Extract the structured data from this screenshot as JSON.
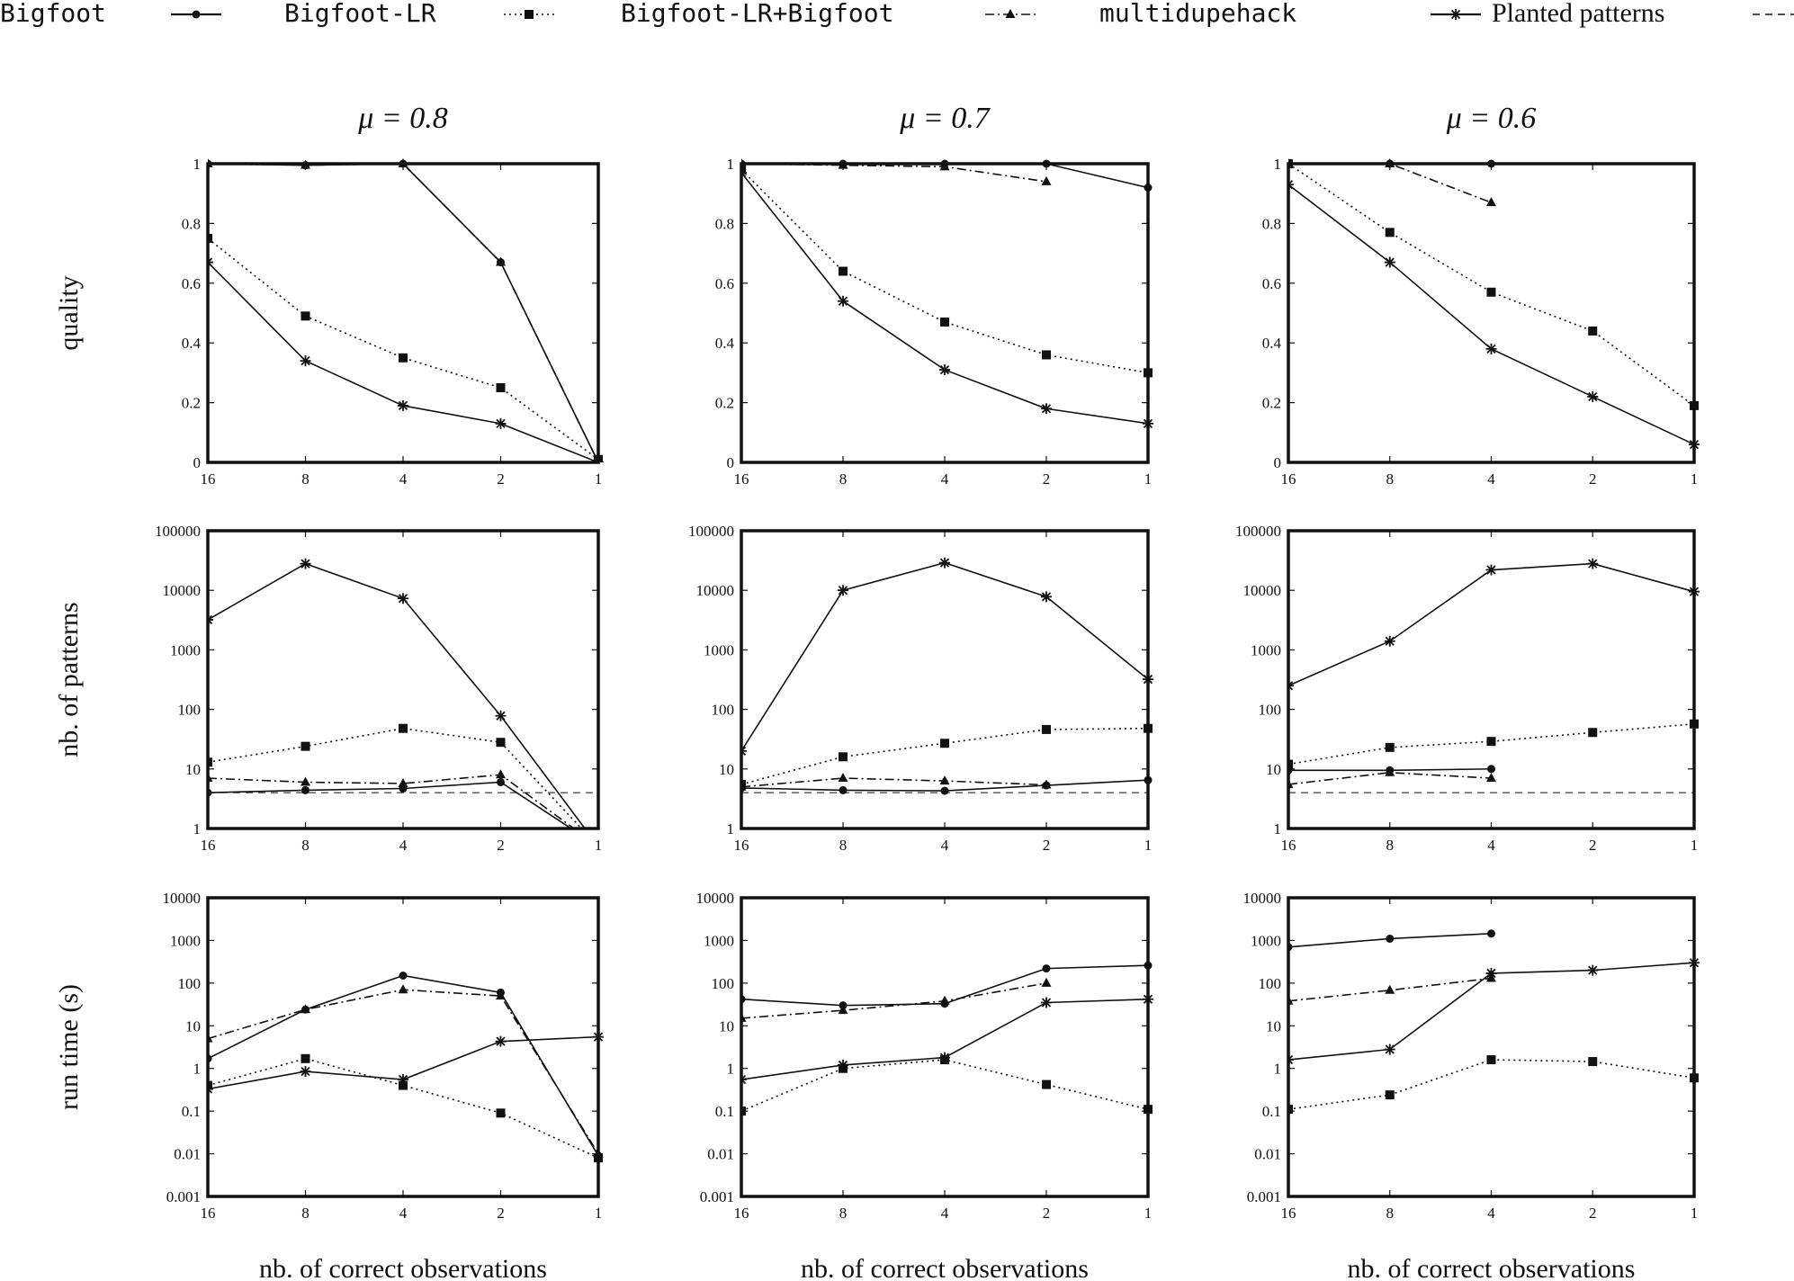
{
  "legend": [
    {
      "label": "Bigfoot",
      "style": "solid",
      "marker": "circle"
    },
    {
      "label": "Bigfoot-LR",
      "style": "dotted",
      "marker": "square"
    },
    {
      "label": "Bigfoot-LR+Bigfoot",
      "style": "dashdot",
      "marker": "triangle"
    },
    {
      "label": "multidupehack",
      "style": "solid",
      "marker": "star"
    },
    {
      "label": "Planted patterns",
      "style": "dashed",
      "marker": "none"
    }
  ],
  "column_titles": [
    "μ = 0.8",
    "μ = 0.7",
    "μ = 0.6"
  ],
  "row_labels": [
    "quality",
    "nb. of patterns",
    "run time (s)"
  ],
  "xlabel": "nb. of correct observations",
  "x_ticks": [
    16,
    8,
    4,
    2,
    1
  ],
  "chart_data": [
    {
      "type": "line",
      "title": "μ = 0.8",
      "ylabel": "quality",
      "xlabel": "nb. of correct observations",
      "yscale": "linear",
      "ylim": [
        0,
        1
      ],
      "yticks": [
        "0",
        "0.2",
        "0.4",
        "0.6",
        "0.8",
        "1"
      ],
      "x": [
        16,
        8,
        4,
        2,
        1
      ],
      "series": [
        {
          "name": "Bigfoot",
          "values": [
            1,
            0.995,
            1,
            0.67,
            0
          ]
        },
        {
          "name": "Bigfoot-LR",
          "values": [
            0.75,
            0.49,
            0.35,
            0.25,
            0.01
          ]
        },
        {
          "name": "Bigfoot-LR+Bigfoot",
          "values": [
            1,
            0.995,
            1,
            0.67,
            0
          ]
        },
        {
          "name": "multidupehack",
          "values": [
            0.67,
            0.34,
            0.19,
            0.13,
            0
          ]
        }
      ]
    },
    {
      "type": "line",
      "title": "μ = 0.7",
      "ylabel": "quality",
      "xlabel": "nb. of correct observations",
      "yscale": "linear",
      "ylim": [
        0,
        1
      ],
      "yticks": [
        "0",
        "0.2",
        "0.4",
        "0.6",
        "0.8",
        "1"
      ],
      "x": [
        16,
        8,
        4,
        2,
        1
      ],
      "series": [
        {
          "name": "Bigfoot",
          "values": [
            1,
            1,
            1,
            1,
            0.92
          ]
        },
        {
          "name": "Bigfoot-LR",
          "values": [
            0.98,
            0.64,
            0.47,
            0.36,
            0.3
          ]
        },
        {
          "name": "Bigfoot-LR+Bigfoot",
          "values": [
            1,
            0.995,
            0.99,
            0.94,
            null
          ]
        },
        {
          "name": "multidupehack",
          "values": [
            0.97,
            0.54,
            0.31,
            0.18,
            0.13
          ]
        }
      ]
    },
    {
      "type": "line",
      "title": "μ = 0.6",
      "ylabel": "quality",
      "xlabel": "nb. of correct observations",
      "yscale": "linear",
      "ylim": [
        0,
        1
      ],
      "yticks": [
        "0",
        "0.2",
        "0.4",
        "0.6",
        "0.8",
        "1"
      ],
      "x": [
        16,
        8,
        4,
        2,
        1
      ],
      "series": [
        {
          "name": "Bigfoot",
          "values": [
            1,
            1,
            1,
            null,
            null
          ]
        },
        {
          "name": "Bigfoot-LR",
          "values": [
            1,
            0.77,
            0.57,
            0.44,
            0.19
          ]
        },
        {
          "name": "Bigfoot-LR+Bigfoot",
          "values": [
            1,
            1,
            0.87,
            null,
            null
          ]
        },
        {
          "name": "multidupehack",
          "values": [
            0.93,
            0.67,
            0.38,
            0.22,
            0.06
          ]
        }
      ]
    },
    {
      "type": "line",
      "ylabel": "nb. of patterns",
      "xlabel": "nb. of correct observations",
      "yscale": "log",
      "ylim": [
        1,
        100000
      ],
      "yticks": [
        "1",
        "10",
        "100",
        "1000",
        "10000",
        "100000"
      ],
      "x": [
        16,
        8,
        4,
        2,
        1
      ],
      "series": [
        {
          "name": "Bigfoot",
          "values": [
            4,
            4.4,
            4.7,
            6,
            0.5
          ]
        },
        {
          "name": "Bigfoot-LR",
          "values": [
            13,
            24,
            48,
            28,
            0.5
          ]
        },
        {
          "name": "Bigfoot-LR+Bigfoot",
          "values": [
            7,
            6,
            5.7,
            8,
            0.5
          ]
        },
        {
          "name": "multidupehack",
          "values": [
            3200,
            28000,
            7300,
            78,
            0.5
          ]
        },
        {
          "name": "Planted patterns",
          "values": [
            4,
            4,
            4,
            4,
            4
          ]
        }
      ]
    },
    {
      "type": "line",
      "ylabel": "nb. of patterns",
      "xlabel": "nb. of correct observations",
      "yscale": "log",
      "ylim": [
        1,
        100000
      ],
      "yticks": [
        "1",
        "10",
        "100",
        "1000",
        "10000",
        "100000"
      ],
      "x": [
        16,
        8,
        4,
        2,
        1
      ],
      "series": [
        {
          "name": "Bigfoot",
          "values": [
            4.8,
            4.4,
            4.3,
            5.3,
            6.5
          ]
        },
        {
          "name": "Bigfoot-LR",
          "values": [
            5.5,
            16,
            27,
            46,
            48
          ]
        },
        {
          "name": "Bigfoot-LR+Bigfoot",
          "values": [
            5,
            7,
            6.3,
            5.4,
            null
          ]
        },
        {
          "name": "multidupehack",
          "values": [
            20,
            10000,
            29000,
            7800,
            320
          ]
        },
        {
          "name": "Planted patterns",
          "values": [
            4,
            4,
            4,
            4,
            4
          ]
        }
      ]
    },
    {
      "type": "line",
      "ylabel": "nb. of patterns",
      "xlabel": "nb. of correct observations",
      "yscale": "log",
      "ylim": [
        1,
        100000
      ],
      "yticks": [
        "1",
        "10",
        "100",
        "1000",
        "10000",
        "100000"
      ],
      "x": [
        16,
        8,
        4,
        2,
        1
      ],
      "series": [
        {
          "name": "Bigfoot",
          "values": [
            9.5,
            9.5,
            10,
            null,
            null
          ]
        },
        {
          "name": "Bigfoot-LR",
          "values": [
            12,
            23,
            29,
            41,
            57
          ]
        },
        {
          "name": "Bigfoot-LR+Bigfoot",
          "values": [
            5.5,
            8.7,
            7,
            null,
            null
          ]
        },
        {
          "name": "multidupehack",
          "values": [
            250,
            1400,
            22000,
            28000,
            9500
          ]
        },
        {
          "name": "Planted patterns",
          "values": [
            4,
            4,
            4,
            4,
            4
          ]
        }
      ]
    },
    {
      "type": "line",
      "ylabel": "run time (s)",
      "xlabel": "nb. of correct observations",
      "yscale": "log",
      "ylim": [
        0.001,
        10000
      ],
      "yticks": [
        "0.001",
        "0.01",
        "0.1",
        "1",
        "10",
        "100",
        "1000",
        "10000"
      ],
      "x": [
        16,
        8,
        4,
        2,
        1
      ],
      "series": [
        {
          "name": "Bigfoot",
          "values": [
            1.7,
            24,
            150,
            60,
            0.009
          ]
        },
        {
          "name": "Bigfoot-LR",
          "values": [
            0.4,
            1.7,
            0.4,
            0.09,
            0.008
          ]
        },
        {
          "name": "Bigfoot-LR+Bigfoot",
          "values": [
            5,
            24,
            70,
            50,
            0.01
          ]
        },
        {
          "name": "multidupehack",
          "values": [
            0.33,
            0.85,
            0.55,
            4.3,
            5.5
          ]
        }
      ]
    },
    {
      "type": "line",
      "ylabel": "run time (s)",
      "xlabel": "nb. of correct observations",
      "yscale": "log",
      "ylim": [
        0.001,
        10000
      ],
      "yticks": [
        "0.001",
        "0.01",
        "0.1",
        "1",
        "10",
        "100",
        "1000",
        "10000"
      ],
      "x": [
        16,
        8,
        4,
        2,
        1
      ],
      "series": [
        {
          "name": "Bigfoot",
          "values": [
            42,
            30,
            33,
            220,
            260
          ]
        },
        {
          "name": "Bigfoot-LR",
          "values": [
            0.1,
            1,
            1.6,
            0.42,
            0.11
          ]
        },
        {
          "name": "Bigfoot-LR+Bigfoot",
          "values": [
            15,
            23,
            38,
            100,
            null
          ]
        },
        {
          "name": "multidupehack",
          "values": [
            0.55,
            1.2,
            1.8,
            35,
            42
          ]
        }
      ]
    },
    {
      "type": "line",
      "ylabel": "run time (s)",
      "xlabel": "nb. of correct observations",
      "yscale": "log",
      "ylim": [
        0.001,
        10000
      ],
      "yticks": [
        "0.001",
        "0.01",
        "0.1",
        "1",
        "10",
        "100",
        "1000",
        "10000"
      ],
      "x": [
        16,
        8,
        4,
        2,
        1
      ],
      "series": [
        {
          "name": "Bigfoot",
          "values": [
            700,
            1100,
            1450,
            null,
            null
          ]
        },
        {
          "name": "Bigfoot-LR",
          "values": [
            0.11,
            0.24,
            1.6,
            1.45,
            0.6
          ]
        },
        {
          "name": "Bigfoot-LR+Bigfoot",
          "values": [
            38,
            68,
            130,
            null,
            null
          ]
        },
        {
          "name": "multidupehack",
          "values": [
            1.6,
            2.8,
            170,
            200,
            300
          ]
        }
      ]
    }
  ]
}
